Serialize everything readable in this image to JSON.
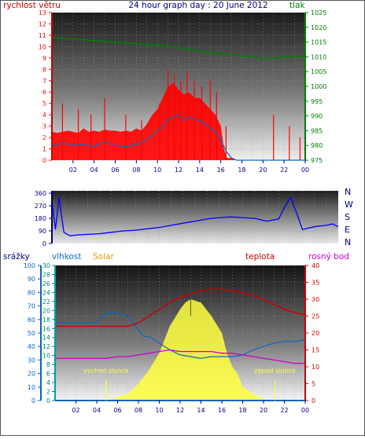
{
  "header": {
    "title": "24 hour graph day : 20 June 2012",
    "left_label": "rychlost větru",
    "right_label": "tlak"
  },
  "colors": {
    "wind": "#ff0000",
    "gust_line": "#0a6cc8",
    "pressure": "#008000",
    "direction": "#0000ff",
    "title": "#000080",
    "rain": "#0a64c8",
    "humidity": "#00a0a0",
    "solar": "#ffff40",
    "solar_label": "#e0a000",
    "temperature": "#cc0000",
    "dewpoint": "#cc00cc",
    "hour_tick": "#000080",
    "panel_dark": "#1a1a1a",
    "panel_light": "#f2f2f2"
  },
  "time_axis": {
    "labels": [
      "02",
      "04",
      "06",
      "08",
      "10",
      "12",
      "14",
      "16",
      "18",
      "20",
      "22",
      "00"
    ],
    "range_hours": [
      0,
      24
    ]
  },
  "chart_data": [
    {
      "type": "line",
      "id": "wind_pressure",
      "left_axis": {
        "label": "rychlost větru",
        "ylim": [
          0,
          13
        ],
        "ticks": [
          0,
          1,
          2,
          3,
          4,
          5,
          6,
          7,
          8,
          9,
          10,
          11,
          12,
          13
        ]
      },
      "right_axis": {
        "label": "tlak",
        "ylim": [
          975,
          1025
        ],
        "ticks": [
          975,
          980,
          985,
          990,
          995,
          1000,
          1005,
          1010,
          1015,
          1020,
          1025
        ]
      },
      "grid": true,
      "series": [
        {
          "name": "wind",
          "axis": "left",
          "style": "filled-spiky",
          "x": [
            0,
            0.5,
            1,
            1.5,
            2,
            2.5,
            3,
            3.5,
            4,
            4.5,
            5,
            5.5,
            6,
            6.5,
            7,
            7.5,
            8,
            8.5,
            9,
            9.5,
            10,
            10.5,
            11,
            11.5,
            12,
            12.5,
            13,
            13.5,
            14,
            14.5,
            15,
            15.5,
            16,
            16.3,
            16.6,
            17,
            17.5,
            18,
            18.5,
            19,
            19.5,
            20,
            20.5,
            21,
            21.5,
            22,
            22.5,
            23,
            23.5,
            24
          ],
          "y": [
            2.5,
            2.4,
            2.5,
            2.6,
            2.5,
            2.4,
            2.8,
            2.5,
            2.6,
            2.5,
            2.7,
            2.6,
            2.6,
            2.5,
            2.6,
            2.5,
            2.8,
            2.6,
            3.2,
            4.0,
            4.5,
            5.5,
            6.5,
            6.8,
            6.2,
            5.8,
            6.0,
            5.5,
            5.5,
            5.0,
            4.5,
            4.0,
            3.0,
            1.0,
            0.2,
            0.2,
            0,
            0,
            0,
            0,
            0,
            0,
            0,
            0,
            0,
            0,
            0,
            0,
            0,
            0
          ]
        },
        {
          "name": "gust",
          "axis": "left",
          "style": "spikes",
          "x": [
            1,
            2.5,
            3.7,
            5,
            7,
            8.5,
            10.2,
            11,
            11.6,
            12.2,
            12.8,
            13.5,
            14.2,
            15,
            15.6,
            16.5,
            21,
            22.5,
            23.5
          ],
          "y": [
            5,
            4.5,
            4,
            5.5,
            4,
            3.5,
            5,
            8,
            7.5,
            7,
            7.8,
            7,
            6.5,
            7,
            6,
            3,
            4,
            3,
            2
          ]
        },
        {
          "name": "wind_avg",
          "axis": "left",
          "x": [
            0,
            1,
            2,
            3,
            4,
            5,
            6,
            7,
            8,
            9,
            9.5,
            10,
            10.5,
            11,
            11.5,
            12,
            12.5,
            13,
            13.5,
            14,
            14.5,
            15,
            15.5,
            16,
            16.5,
            17,
            17.5,
            24
          ],
          "y": [
            1.2,
            1.5,
            1.3,
            1.4,
            1.2,
            1.6,
            1.3,
            1.2,
            1.4,
            1.8,
            2.2,
            2.6,
            3.0,
            3.6,
            3.8,
            4.0,
            3.5,
            3.8,
            3.6,
            3.5,
            3.2,
            2.8,
            2.5,
            1.8,
            0.8,
            0.2,
            0,
            0
          ]
        },
        {
          "name": "pressure",
          "axis": "right",
          "x": [
            0,
            2,
            4,
            6,
            8,
            10,
            12,
            14,
            16,
            17,
            18,
            19,
            20,
            21,
            22,
            23,
            24
          ],
          "y": [
            1016.5,
            1016,
            1015.5,
            1015,
            1014.5,
            1014,
            1013,
            1012,
            1011,
            1010.8,
            1010.2,
            1010,
            1009.3,
            1009.6,
            1010,
            1010,
            1010
          ]
        }
      ]
    },
    {
      "type": "line",
      "id": "wind_direction",
      "y_axis": {
        "ylim": [
          0,
          360
        ],
        "ticks": [
          0,
          90,
          180,
          270,
          360
        ]
      },
      "compass_labels": [
        "N",
        "W",
        "S",
        "E",
        "N"
      ],
      "series": [
        {
          "name": "direction",
          "x": [
            0,
            0.3,
            0.6,
            1,
            1.5,
            2,
            3,
            4,
            5,
            6,
            7,
            8,
            9,
            10,
            11,
            12,
            13,
            14,
            15,
            16,
            17,
            18,
            19,
            19.5,
            20,
            20.5,
            21,
            22,
            23,
            23.5,
            24
          ],
          "y": [
            310,
            100,
            330,
            80,
            55,
            60,
            65,
            70,
            80,
            90,
            95,
            105,
            115,
            130,
            145,
            160,
            175,
            185,
            190,
            185,
            180,
            160,
            175,
            260,
            330,
            220,
            100,
            120,
            130,
            140,
            120
          ]
        }
      ]
    },
    {
      "type": "line",
      "id": "rain_humidity_solar_temperature",
      "rain_axis": {
        "label": "srážky",
        "ylim": [
          0,
          100
        ],
        "ticks": [
          0,
          10,
          20,
          30,
          40,
          50,
          60,
          70,
          80,
          90,
          100
        ]
      },
      "humidity_axis": {
        "label": "vlhkost",
        "ylim": [
          0,
          30
        ],
        "ticks": [
          0,
          2,
          4,
          6,
          8,
          10,
          12,
          14,
          16,
          18,
          20,
          22,
          24,
          26,
          28,
          30
        ]
      },
      "temp_axis": {
        "label": "teplota",
        "ylim": [
          0,
          40
        ],
        "ticks": [
          0,
          5,
          10,
          15,
          20,
          25,
          30,
          35,
          40
        ]
      },
      "solar_label": "Solar",
      "dew_label": "rosný bod",
      "annotations": [
        {
          "text": "východ slunce",
          "x": 4.9
        },
        {
          "text": "západ slunce",
          "x": 21.1
        }
      ],
      "series": [
        {
          "name": "temperature",
          "axis": "temp",
          "x": [
            0,
            1,
            2,
            3,
            4,
            5,
            6,
            7,
            8,
            9,
            10,
            11,
            12,
            13,
            14,
            15,
            16,
            17,
            18,
            19,
            20,
            21,
            22,
            23,
            24
          ],
          "y": [
            22,
            22,
            22,
            22,
            22,
            22,
            22,
            22,
            23,
            25,
            27,
            29,
            30.5,
            31.5,
            32.5,
            33,
            33,
            32.5,
            32,
            31,
            30,
            28.5,
            27,
            26,
            25.5
          ]
        },
        {
          "name": "humidity",
          "axis": "temp",
          "x": [
            0,
            1,
            2,
            3,
            4,
            5,
            6,
            7,
            8,
            8.5,
            9,
            10,
            11,
            12,
            13,
            14,
            15,
            16,
            17,
            18,
            19,
            20,
            21,
            22,
            23,
            24
          ],
          "y": [
            23,
            23,
            23,
            23,
            23,
            26,
            26,
            25,
            21,
            19,
            19,
            17,
            15,
            13.5,
            13,
            12.5,
            13,
            13,
            13,
            13.5,
            15,
            16,
            17,
            17.5,
            17.5,
            18
          ]
        },
        {
          "name": "dewpoint",
          "axis": "temp",
          "x": [
            0,
            1,
            2,
            3,
            4,
            5,
            6,
            7,
            8,
            9,
            10,
            11,
            12,
            13,
            14,
            15,
            16,
            17,
            18,
            19,
            20,
            21,
            22,
            23,
            24
          ],
          "y": [
            12.5,
            12.5,
            12.5,
            12.5,
            12.5,
            12.5,
            13,
            13,
            13.5,
            14,
            14.5,
            15,
            14.5,
            14.5,
            14.5,
            14.5,
            14,
            14,
            13.5,
            13,
            12.5,
            12,
            11.5,
            11,
            11
          ]
        },
        {
          "name": "solar",
          "axis": "temp",
          "style": "filled",
          "x": [
            4.9,
            6,
            7,
            8,
            9,
            10,
            11,
            12,
            12.5,
            13,
            13.5,
            14,
            15,
            16,
            16.5,
            17,
            17.5,
            18,
            19,
            20,
            21.1
          ],
          "y": [
            0,
            1,
            2,
            5,
            9,
            14,
            22,
            27,
            29,
            30,
            29.5,
            29,
            25,
            20,
            14,
            10,
            8,
            4,
            2,
            0.5,
            0
          ]
        },
        {
          "name": "rain",
          "axis": "rain",
          "x": [
            0,
            24
          ],
          "y": [
            0,
            0
          ]
        }
      ]
    }
  ]
}
